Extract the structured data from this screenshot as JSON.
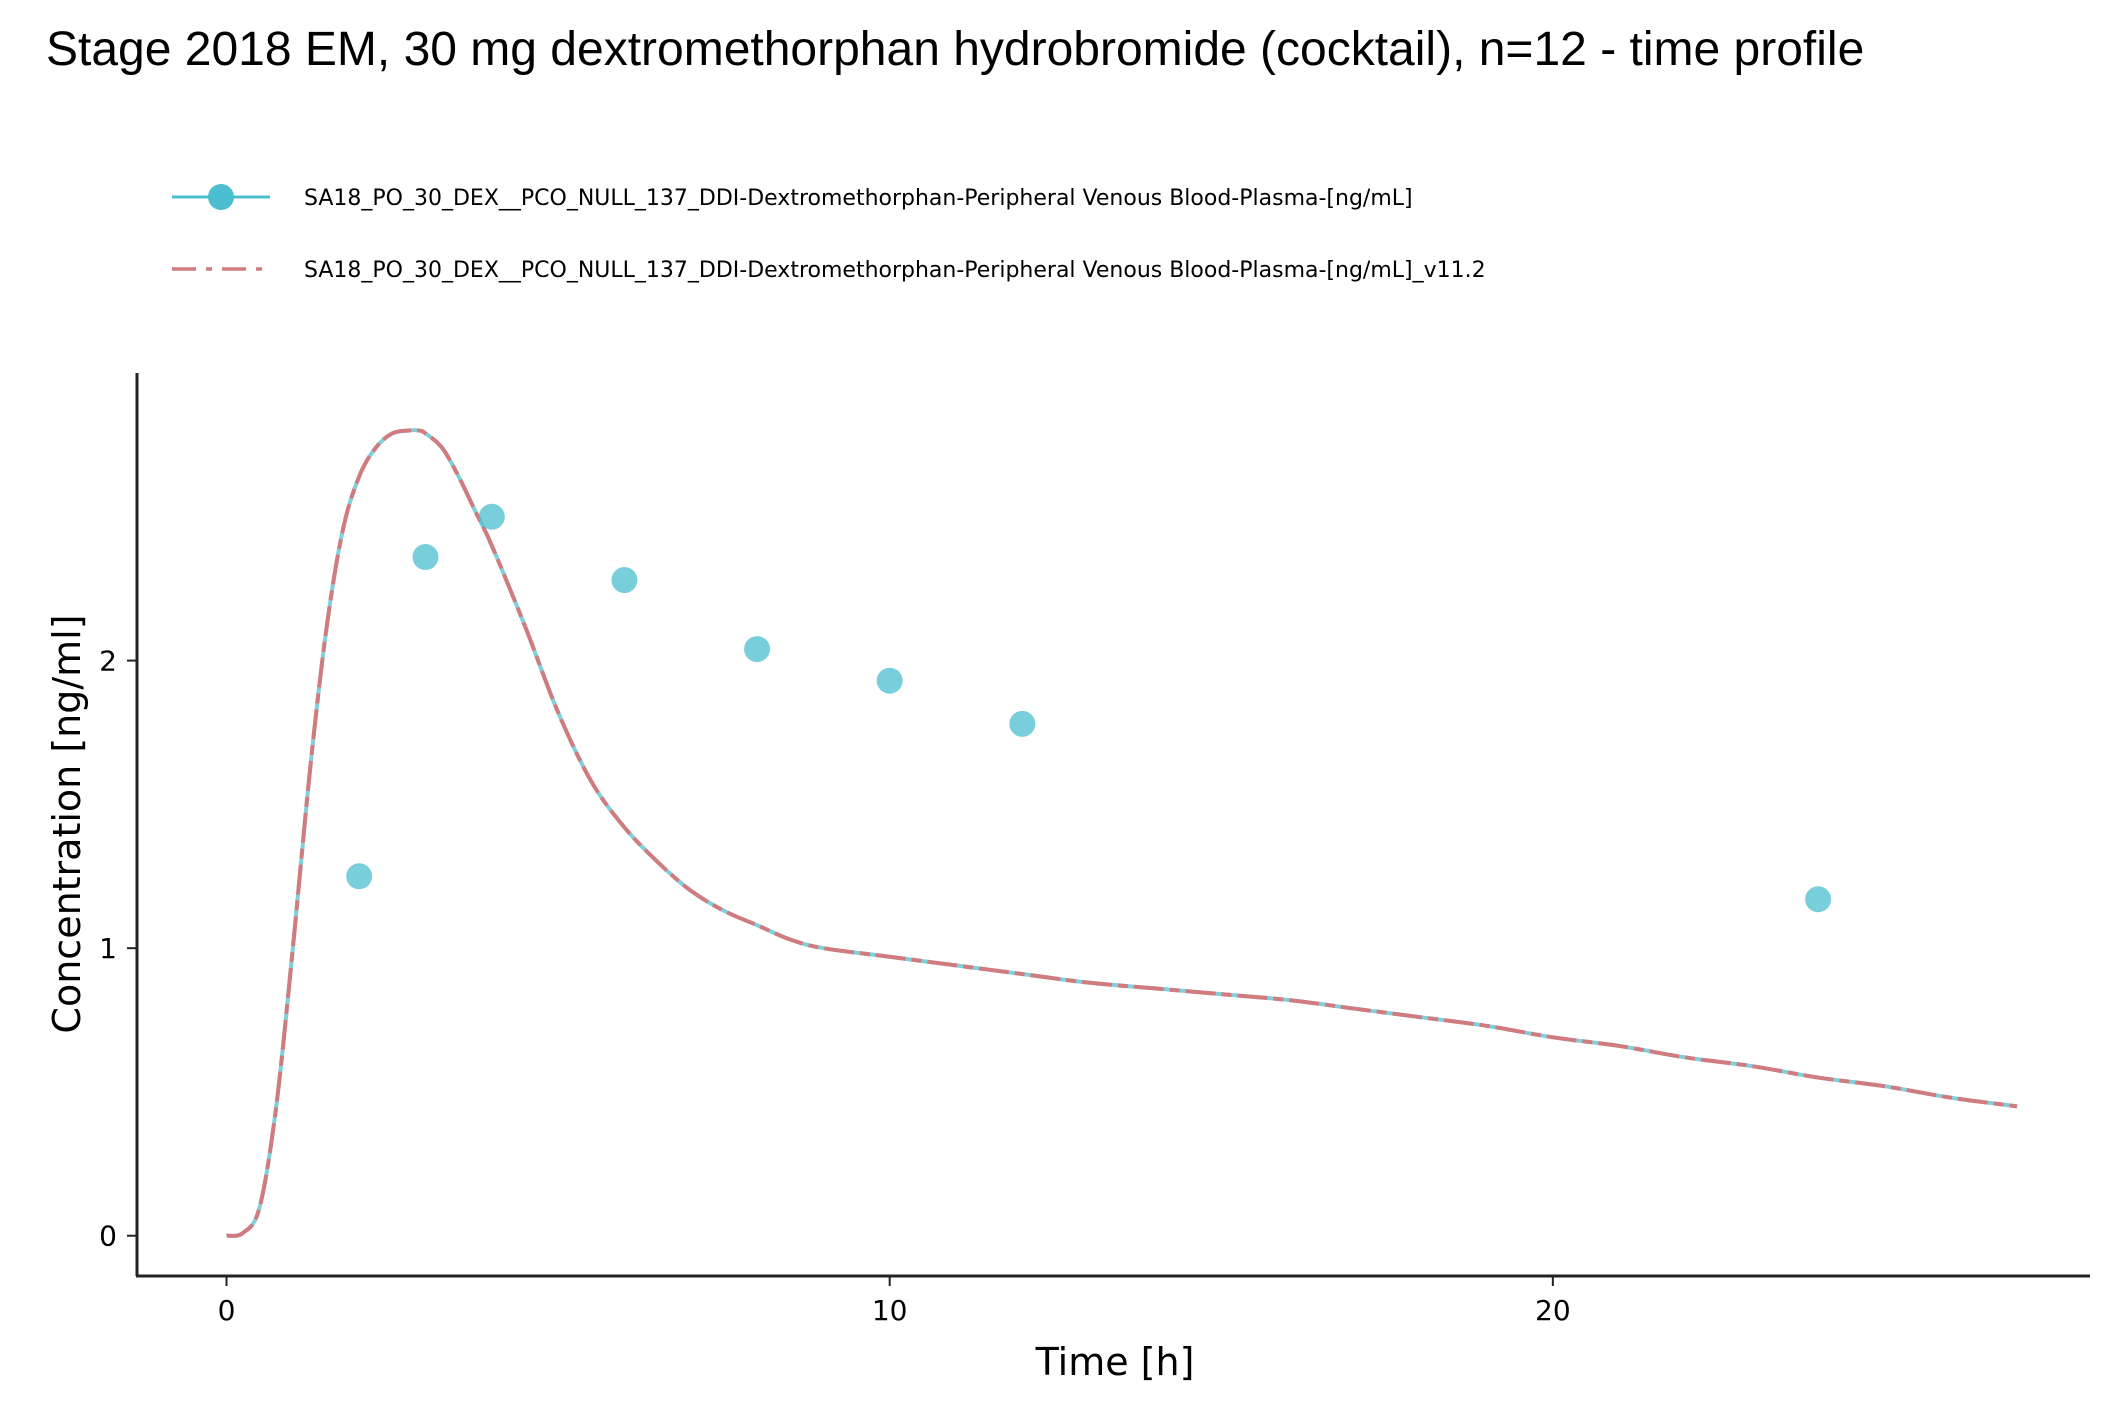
{
  "chart_data": {
    "type": "line",
    "title": "Stage 2018 EM, 30 mg dextromethorphan hydrobromide (cocktail), n=12 - time profile",
    "xlabel": "Time [h]",
    "ylabel": "Concentration [ng/ml]",
    "xlim": [
      -1.35,
      28.1
    ],
    "ylim": [
      -0.14,
      3.0
    ],
    "x_ticks": [
      0,
      10,
      20
    ],
    "y_ticks": [
      0,
      1,
      2
    ],
    "grid": false,
    "legend_position": "top",
    "colors": {
      "observed": "#4bbfcf",
      "simulated": "#d17b7f",
      "simulated_overlay": "#7fd0db"
    },
    "series": [
      {
        "name": "SA18_PO_30_DEX__PCO_NULL_137_DDI-Dextromethorphan-Peripheral Venous Blood-Plasma-[ng/mL]",
        "kind": "observed",
        "x": [
          2,
          3,
          4,
          6,
          8,
          10,
          12,
          24
        ],
        "y": [
          1.25,
          2.36,
          2.5,
          2.28,
          2.04,
          1.93,
          1.78,
          1.17
        ]
      },
      {
        "name": "SA18_PO_30_DEX__PCO_NULL_137_DDI-Dextromethorphan-Peripheral Venous Blood-Plasma-[ng/mL]_v11.2",
        "kind": "simulated",
        "x": [
          0,
          0.25,
          0.5,
          0.75,
          1,
          1.25,
          1.5,
          1.75,
          2,
          2.25,
          2.5,
          2.75,
          2.9,
          3,
          3.25,
          3.5,
          3.75,
          4,
          4.5,
          5,
          5.5,
          6,
          6.5,
          7,
          7.5,
          8,
          8.5,
          9,
          10,
          11,
          12,
          13,
          14,
          15,
          16,
          17,
          18,
          19,
          20,
          21,
          22,
          23,
          24,
          25,
          26,
          27
        ],
        "y": [
          0,
          0.01,
          0.1,
          0.45,
          1.0,
          1.6,
          2.1,
          2.45,
          2.64,
          2.74,
          2.79,
          2.8,
          2.8,
          2.79,
          2.74,
          2.64,
          2.52,
          2.4,
          2.12,
          1.82,
          1.58,
          1.42,
          1.3,
          1.2,
          1.13,
          1.08,
          1.03,
          1.0,
          0.97,
          0.94,
          0.91,
          0.88,
          0.86,
          0.84,
          0.82,
          0.79,
          0.76,
          0.73,
          0.69,
          0.66,
          0.62,
          0.59,
          0.55,
          0.52,
          0.48,
          0.45
        ]
      }
    ]
  }
}
